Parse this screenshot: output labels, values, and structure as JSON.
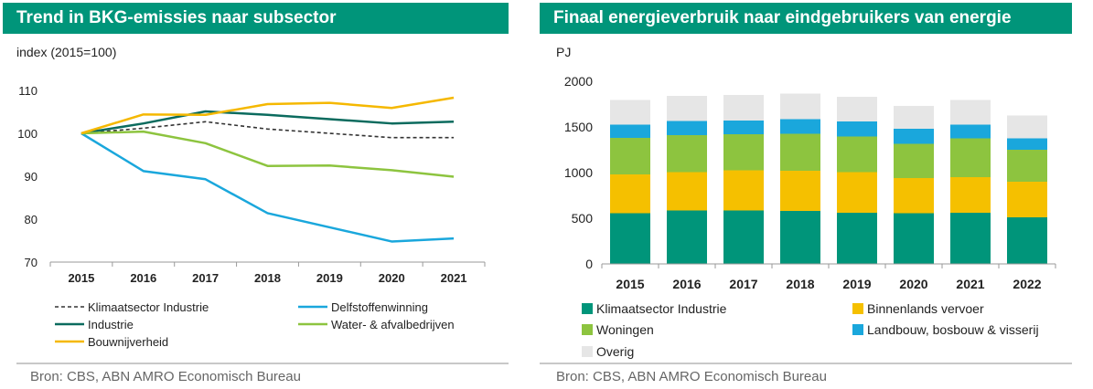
{
  "left": {
    "title": "Trend in BKG-emissies naar subsector",
    "source": "Bron: CBS, ABN AMRO Economisch Bureau",
    "chart_data": {
      "type": "line",
      "ylabel": "index (2015=100)",
      "x": [
        "2015",
        "2016",
        "2017",
        "2018",
        "2019",
        "2020",
        "2021"
      ],
      "ylim": [
        70,
        110
      ],
      "yticks": [
        "110",
        "100",
        "90",
        "80",
        "70"
      ],
      "legend_position": "bottom",
      "series": [
        {
          "name": "Klimaatsector Industrie",
          "color": "#333333",
          "dash": true,
          "values": [
            100,
            101.2,
            102.7,
            101.0,
            100.0,
            99.0,
            99.0
          ]
        },
        {
          "name": "Delfstoffenwinning",
          "color": "#1aa7dc",
          "dash": false,
          "values": [
            100,
            91.2,
            89.3,
            81.4,
            78.1,
            74.8,
            75.5
          ]
        },
        {
          "name": "Industrie",
          "color": "#0b6b5e",
          "dash": false,
          "values": [
            100,
            102.3,
            105.1,
            104.3,
            103.3,
            102.3,
            102.7
          ]
        },
        {
          "name": "Water- & afvalbedrijven",
          "color": "#8dc43f",
          "dash": false,
          "values": [
            100,
            100.4,
            97.7,
            92.4,
            92.5,
            91.4,
            89.9
          ]
        },
        {
          "name": "Bouwnijverheid",
          "color": "#f5b800",
          "dash": false,
          "values": [
            100,
            104.4,
            104.3,
            106.8,
            107.1,
            105.9,
            108.3
          ]
        }
      ]
    }
  },
  "right": {
    "title": "Finaal energieverbruik naar eindgebruikers van energie",
    "source": "Bron: CBS, ABN AMRO Economisch Bureau",
    "chart_data": {
      "type": "bar",
      "stacked": true,
      "ylabel": "PJ",
      "categories": [
        "2015",
        "2016",
        "2017",
        "2018",
        "2019",
        "2020",
        "2021",
        "2022"
      ],
      "ylim": [
        0,
        2000
      ],
      "yticks": [
        "2000",
        "1500",
        "1000",
        "500",
        "0"
      ],
      "legend_position": "bottom",
      "series": [
        {
          "name": "Klimaatsector Industrie",
          "color": "#00957a",
          "values": [
            555,
            585,
            585,
            580,
            560,
            555,
            560,
            510
          ]
        },
        {
          "name": "Binnenlands vervoer",
          "color": "#f5c000",
          "values": [
            425,
            420,
            440,
            440,
            445,
            385,
            390,
            390
          ]
        },
        {
          "name": "Woningen",
          "color": "#8dc43f",
          "values": [
            400,
            405,
            395,
            405,
            390,
            375,
            425,
            350
          ]
        },
        {
          "name": "Landbouw, bosbouw & visserij",
          "color": "#1aa7dc",
          "values": [
            145,
            155,
            150,
            160,
            165,
            165,
            150,
            125
          ]
        },
        {
          "name": "Overig",
          "color": "#e6e6e6",
          "values": [
            270,
            275,
            280,
            280,
            270,
            250,
            270,
            250
          ]
        }
      ]
    }
  }
}
